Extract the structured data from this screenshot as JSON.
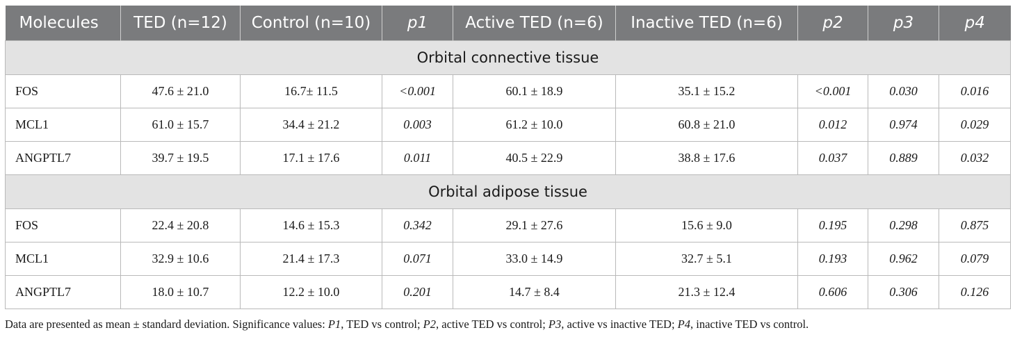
{
  "table": {
    "headers": [
      "Molecules",
      "TED (n=12)",
      "Control (n=10)",
      "p1",
      "Active TED (n=6)",
      "Inactive TED (n=6)",
      "p2",
      "p3",
      "p4"
    ],
    "sections": [
      {
        "title": "Orbital connective tissue",
        "rows": [
          [
            "FOS",
            "47.6 ± 21.0",
            "16.7± 11.5",
            "<0.001",
            "60.1 ± 18.9",
            "35.1 ± 15.2",
            "<0.001",
            "0.030",
            "0.016"
          ],
          [
            "MCL1",
            "61.0 ± 15.7",
            "34.4 ± 21.2",
            "0.003",
            "61.2 ± 10.0",
            "60.8 ± 21.0",
            "0.012",
            "0.974",
            "0.029"
          ],
          [
            "ANGPTL7",
            "39.7 ± 19.5",
            "17.1 ± 17.6",
            "0.011",
            "40.5 ± 22.9",
            "38.8 ± 17.6",
            "0.037",
            "0.889",
            "0.032"
          ]
        ]
      },
      {
        "title": "Orbital adipose tissue",
        "rows": [
          [
            "FOS",
            "22.4 ± 20.8",
            "14.6 ± 15.3",
            "0.342",
            "29.1 ± 27.6",
            "15.6 ± 9.0",
            "0.195",
            "0.298",
            "0.875"
          ],
          [
            "MCL1",
            "32.9 ± 10.6",
            "21.4 ± 17.3",
            "0.071",
            "33.0 ± 14.9",
            "32.7 ± 5.1",
            "0.193",
            "0.962",
            "0.079"
          ],
          [
            "ANGPTL7",
            "18.0 ± 10.7",
            "12.2 ± 10.0",
            "0.201",
            "14.7 ± 8.4",
            "21.3 ± 12.4",
            "0.606",
            "0.306",
            "0.126"
          ]
        ]
      }
    ]
  },
  "footnote": {
    "intro": "Data are presented as mean ± standard deviation. Significance values: ",
    "p1_label": "P1",
    "p1_text": ", TED vs control; ",
    "p2_label": "P2",
    "p2_text": ", active TED vs control; ",
    "p3_label": "P3",
    "p3_text": ", active vs inactive TED; ",
    "p4_label": "P4",
    "p4_text": ", inactive TED vs control."
  }
}
